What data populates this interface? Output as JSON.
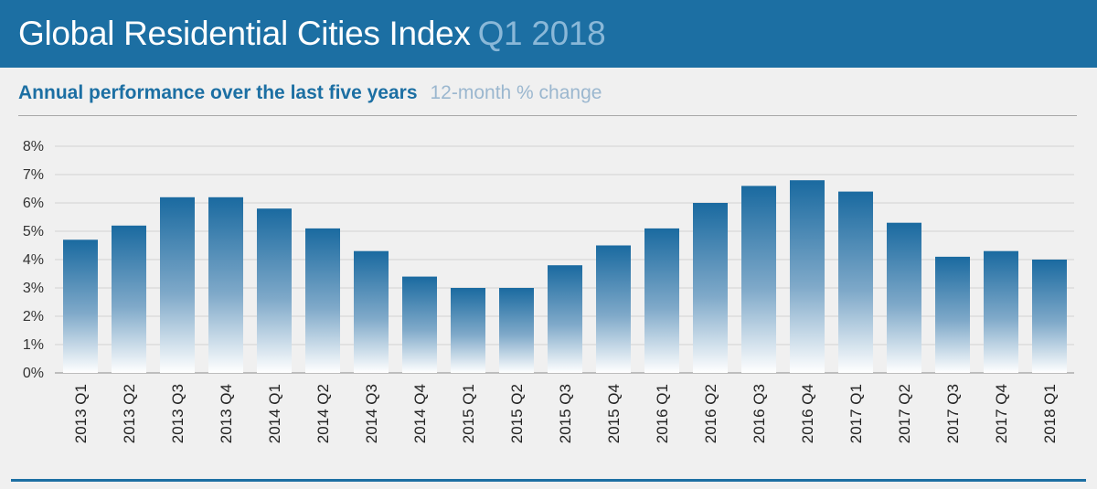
{
  "header": {
    "title": "Global Residential Cities Index",
    "period": "Q1 2018"
  },
  "subtitle": {
    "main": "Annual performance over the last five years",
    "sub": "12-month % change"
  },
  "colors": {
    "header_bg": "#1c6fa3",
    "bar_top": "#1a6aa0",
    "bar_bottom": "#ffffff",
    "accent": "#1c6fa3"
  },
  "chart_data": {
    "type": "bar",
    "categories": [
      "2013 Q1",
      "2013 Q2",
      "2013 Q3",
      "2013 Q4",
      "2014 Q1",
      "2014 Q2",
      "2014 Q3",
      "2014 Q4",
      "2015 Q1",
      "2015 Q2",
      "2015 Q3",
      "2015 Q4",
      "2016 Q1",
      "2016 Q2",
      "2016 Q3",
      "2016 Q4",
      "2017 Q1",
      "2017 Q2",
      "2017 Q3",
      "2017 Q4",
      "2018 Q1"
    ],
    "values": [
      4.7,
      5.2,
      6.2,
      6.2,
      5.8,
      5.1,
      4.3,
      3.4,
      3.0,
      3.0,
      3.8,
      4.5,
      5.1,
      6.0,
      6.6,
      6.8,
      6.4,
      5.3,
      4.1,
      4.3,
      4.0
    ],
    "yticks": [
      "0%",
      "1%",
      "2%",
      "3%",
      "4%",
      "5%",
      "6%",
      "7%",
      "8%"
    ],
    "ylim": [
      0,
      8
    ],
    "grid": true,
    "unit": "%"
  }
}
